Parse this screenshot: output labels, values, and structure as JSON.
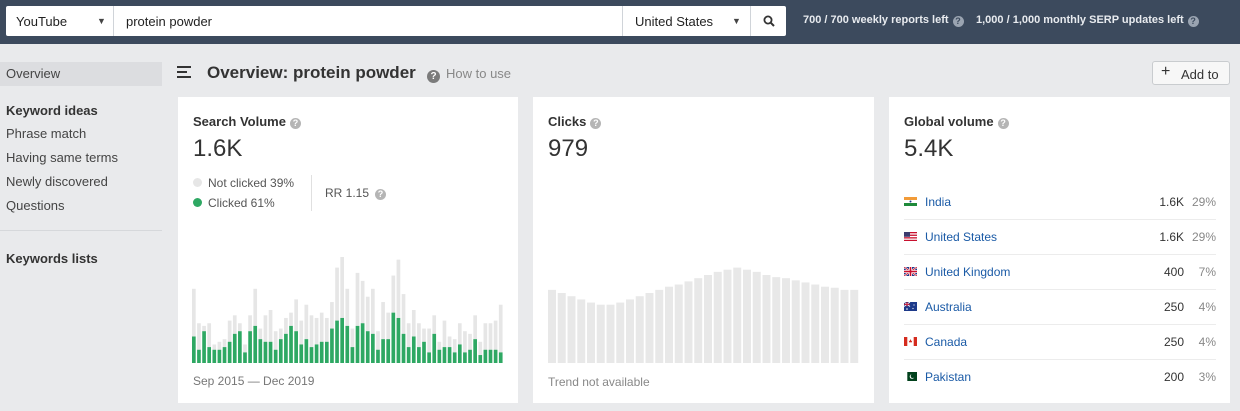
{
  "topbar": {
    "engine": "YouTube",
    "query": "protein powder",
    "country": "United States",
    "weekly_reports": "700 / 700 weekly reports left",
    "monthly_serp": "1,000 / 1,000 monthly SERP updates left"
  },
  "sidebar": {
    "overview": "Overview",
    "keyword_ideas_heading": "Keyword ideas",
    "items": [
      "Phrase match",
      "Having same terms",
      "Newly discovered",
      "Questions"
    ],
    "keywords_lists_heading": "Keywords lists"
  },
  "header": {
    "title": "Overview: protein powder",
    "help": "How to use",
    "add_button": "Add to"
  },
  "search_volume": {
    "label": "Search Volume",
    "value": "1.6K",
    "not_clicked": "Not clicked 39%",
    "clicked": "Clicked 61%",
    "rr": "RR 1.15",
    "date_range": "Sep 2015 — Dec 2019"
  },
  "clicks": {
    "label": "Clicks",
    "value": "979",
    "trend_note": "Trend not available"
  },
  "global_volume": {
    "label": "Global volume",
    "value": "5.4K",
    "countries": [
      {
        "name": "India",
        "volume": "1.6K",
        "percent": "29%",
        "flag": "in"
      },
      {
        "name": "United States",
        "volume": "1.6K",
        "percent": "29%",
        "flag": "us"
      },
      {
        "name": "United Kingdom",
        "volume": "400",
        "percent": "7%",
        "flag": "gb"
      },
      {
        "name": "Australia",
        "volume": "250",
        "percent": "4%",
        "flag": "au"
      },
      {
        "name": "Canada",
        "volume": "250",
        "percent": "4%",
        "flag": "ca"
      },
      {
        "name": "Pakistan",
        "volume": "200",
        "percent": "3%",
        "flag": "pk"
      }
    ]
  },
  "colors": {
    "topbar": "#3c4a5d",
    "clicked": "#2ea863",
    "not_clicked": "#e6e6e6",
    "clicks_bar": "#e8e8e8",
    "link": "#1a5aa6"
  },
  "chart_data": [
    {
      "type": "bar",
      "stacked": true,
      "series": [
        {
          "name": "Clicked",
          "values": [
            10,
            5,
            12,
            6,
            5,
            5,
            6,
            8,
            11,
            12,
            4,
            12,
            14,
            9,
            8,
            8,
            5,
            9,
            11,
            14,
            12,
            7,
            9,
            6,
            7,
            8,
            8,
            13,
            16,
            17,
            14,
            6,
            14,
            15,
            12,
            11,
            5,
            9,
            9,
            19,
            17,
            11,
            6,
            10,
            6,
            8,
            4,
            11,
            5,
            6,
            6,
            4,
            7,
            4,
            5,
            9,
            3,
            5,
            5,
            5,
            4
          ]
        },
        {
          "name": "Not clicked",
          "values": [
            18,
            10,
            2,
            9,
            2,
            3,
            3,
            8,
            7,
            3,
            3,
            6,
            14,
            4,
            10,
            12,
            7,
            4,
            6,
            5,
            12,
            9,
            13,
            12,
            10,
            11,
            9,
            10,
            20,
            24,
            14,
            7,
            20,
            16,
            13,
            17,
            7,
            14,
            10,
            14,
            22,
            15,
            9,
            10,
            9,
            5,
            9,
            7,
            3,
            10,
            4,
            5,
            8,
            8,
            6,
            9,
            5,
            10,
            10,
            11,
            18
          ]
        }
      ],
      "ylim": [
        0,
        40
      ]
    },
    {
      "type": "bar",
      "values": [
        0.69,
        0.66,
        0.63,
        0.6,
        0.57,
        0.55,
        0.55,
        0.57,
        0.6,
        0.63,
        0.66,
        0.69,
        0.72,
        0.74,
        0.77,
        0.8,
        0.83,
        0.86,
        0.88,
        0.9,
        0.88,
        0.86,
        0.83,
        0.81,
        0.8,
        0.78,
        0.76,
        0.74,
        0.72,
        0.71,
        0.69,
        0.69
      ],
      "note": "Trend not available"
    }
  ]
}
